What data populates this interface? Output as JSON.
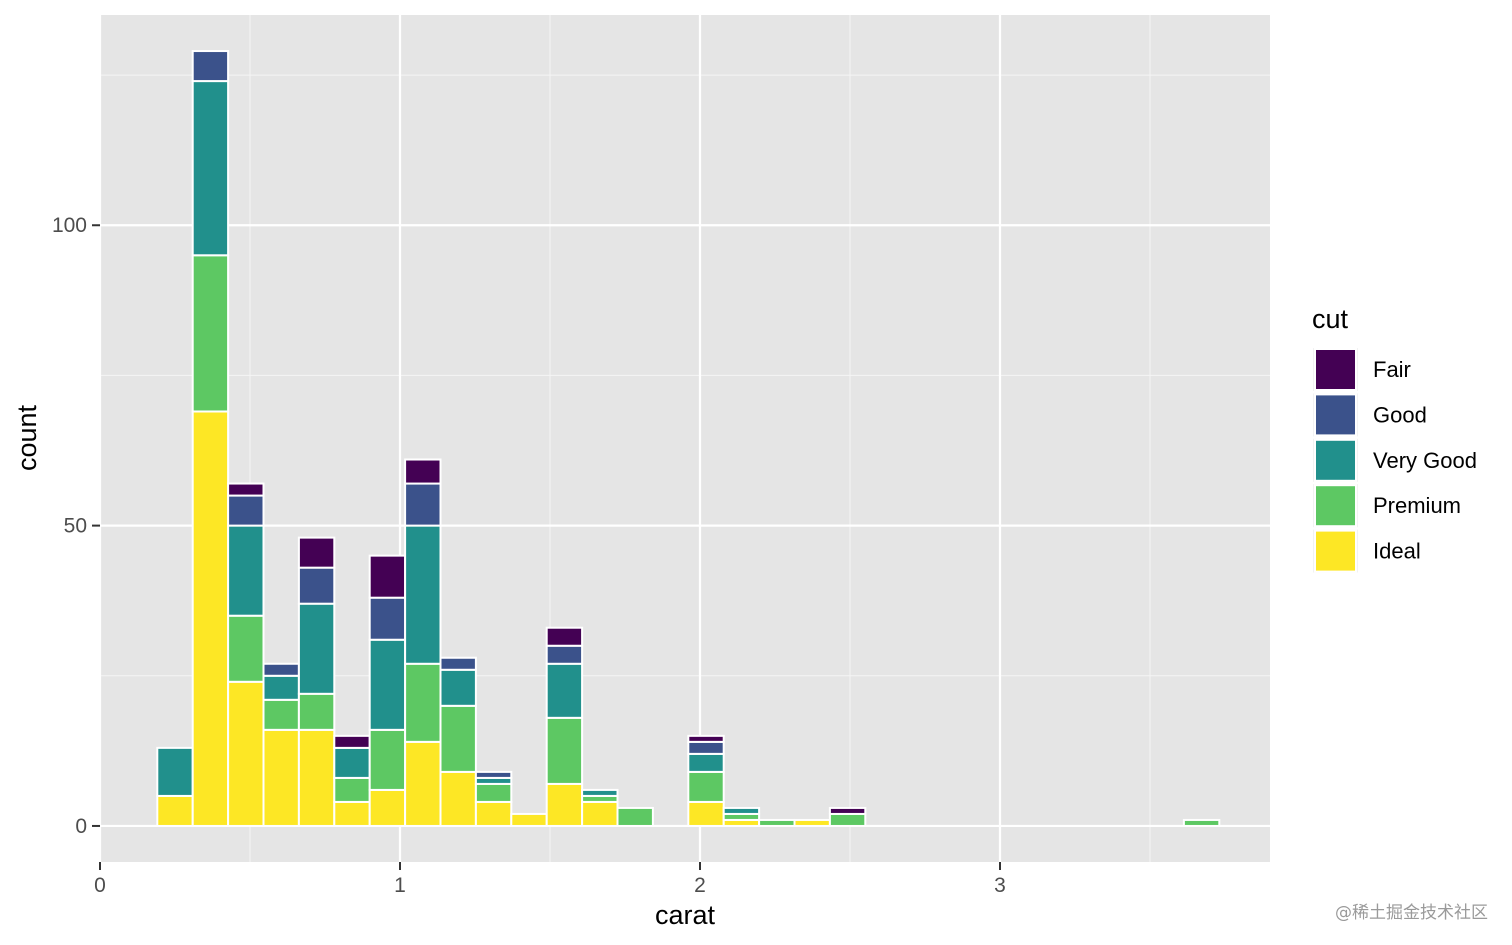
{
  "chart_data": {
    "type": "bar",
    "stacked": true,
    "xlabel": "carat",
    "ylabel": "count",
    "xlim": [
      0,
      3.9
    ],
    "ylim": [
      -6,
      135
    ],
    "x_ticks": [
      0,
      1,
      2,
      3
    ],
    "y_ticks": [
      0,
      50,
      100
    ],
    "grid": true,
    "legend": {
      "title": "cut",
      "position": "right"
    },
    "bin_width": 0.118,
    "x": [
      0.25,
      0.368,
      0.486,
      0.604,
      0.722,
      0.84,
      0.958,
      1.076,
      1.194,
      1.312,
      1.43,
      1.548,
      1.666,
      1.784,
      2.02,
      2.138,
      2.256,
      2.374,
      2.492,
      3.672
    ],
    "series": [
      {
        "name": "Ideal",
        "color": "#FDE725",
        "values": [
          5,
          69,
          24,
          16,
          16,
          4,
          6,
          14,
          9,
          4,
          2,
          7,
          4,
          0,
          4,
          1,
          0,
          1,
          0,
          0
        ]
      },
      {
        "name": "Premium",
        "color": "#5DC863",
        "values": [
          0,
          26,
          11,
          5,
          6,
          4,
          10,
          13,
          11,
          3,
          0,
          11,
          1,
          3,
          5,
          1,
          1,
          0,
          2,
          1
        ]
      },
      {
        "name": "Very Good",
        "color": "#21908C",
        "values": [
          8,
          29,
          15,
          4,
          15,
          5,
          15,
          23,
          6,
          1,
          0,
          9,
          1,
          0,
          3,
          1,
          0,
          0,
          0,
          0
        ]
      },
      {
        "name": "Good",
        "color": "#3B528B",
        "values": [
          0,
          5,
          5,
          2,
          6,
          0,
          7,
          7,
          2,
          1,
          0,
          3,
          0,
          0,
          2,
          0,
          0,
          0,
          0,
          0
        ]
      },
      {
        "name": "Fair",
        "color": "#440154",
        "values": [
          0,
          0,
          2,
          0,
          5,
          2,
          7,
          4,
          0,
          0,
          0,
          3,
          0,
          0,
          1,
          0,
          0,
          0,
          1,
          0
        ]
      }
    ],
    "legend_order": [
      "Fair",
      "Good",
      "Very Good",
      "Premium",
      "Ideal"
    ]
  },
  "watermark": "@稀土掘金技术社区"
}
